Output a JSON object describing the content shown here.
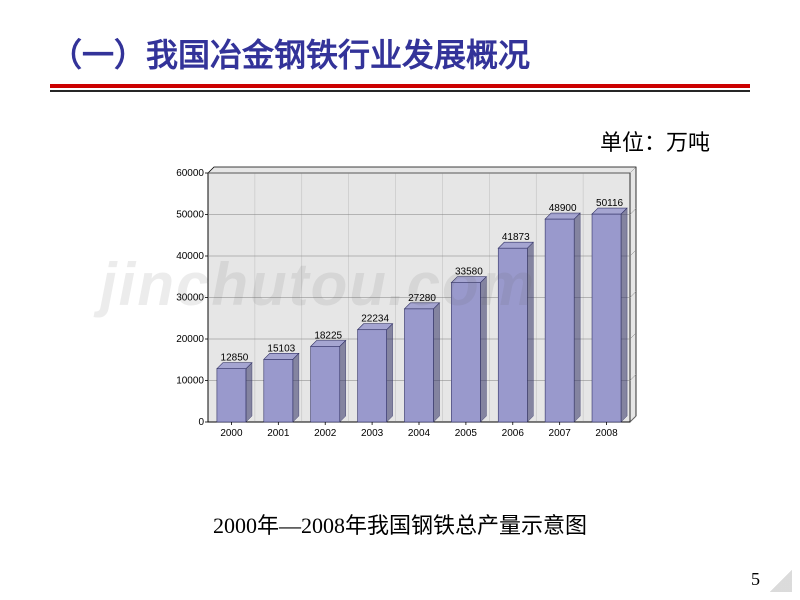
{
  "title": "（一）我国冶金钢铁行业发展概况",
  "unit_label": "单位：万吨",
  "caption": "2000年—2008年我国钢铁总产量示意图",
  "page_number": "5",
  "watermark": "jinchutou.com",
  "chart": {
    "type": "bar",
    "categories": [
      "2000",
      "2001",
      "2002",
      "2003",
      "2004",
      "2005",
      "2006",
      "2007",
      "2008"
    ],
    "values": [
      12850,
      15103,
      18225,
      22234,
      27280,
      33580,
      41873,
      48900,
      50116
    ],
    "bar_colors": [
      "#9999cc",
      "#9999cc",
      "#9999cc",
      "#9999cc",
      "#9999cc",
      "#9999cc",
      "#9999cc",
      "#9999cc",
      "#9999cc"
    ],
    "bar_edge_color": "#333366",
    "background_color": "#e6e6e6",
    "plot_border_color": "#000000",
    "grid_color": "#808080",
    "axis_color": "#000000",
    "ylim": [
      0,
      60000
    ],
    "ytick_step": 10000,
    "yticks": [
      "0",
      "10000",
      "20000",
      "30000",
      "40000",
      "50000",
      "60000"
    ],
    "label_fontsize": 10,
    "tick_fontsize": 10,
    "bar_width_ratio": 0.62,
    "bar_depth": 6,
    "title_fontsize": 22,
    "font_family": "SimSun"
  }
}
